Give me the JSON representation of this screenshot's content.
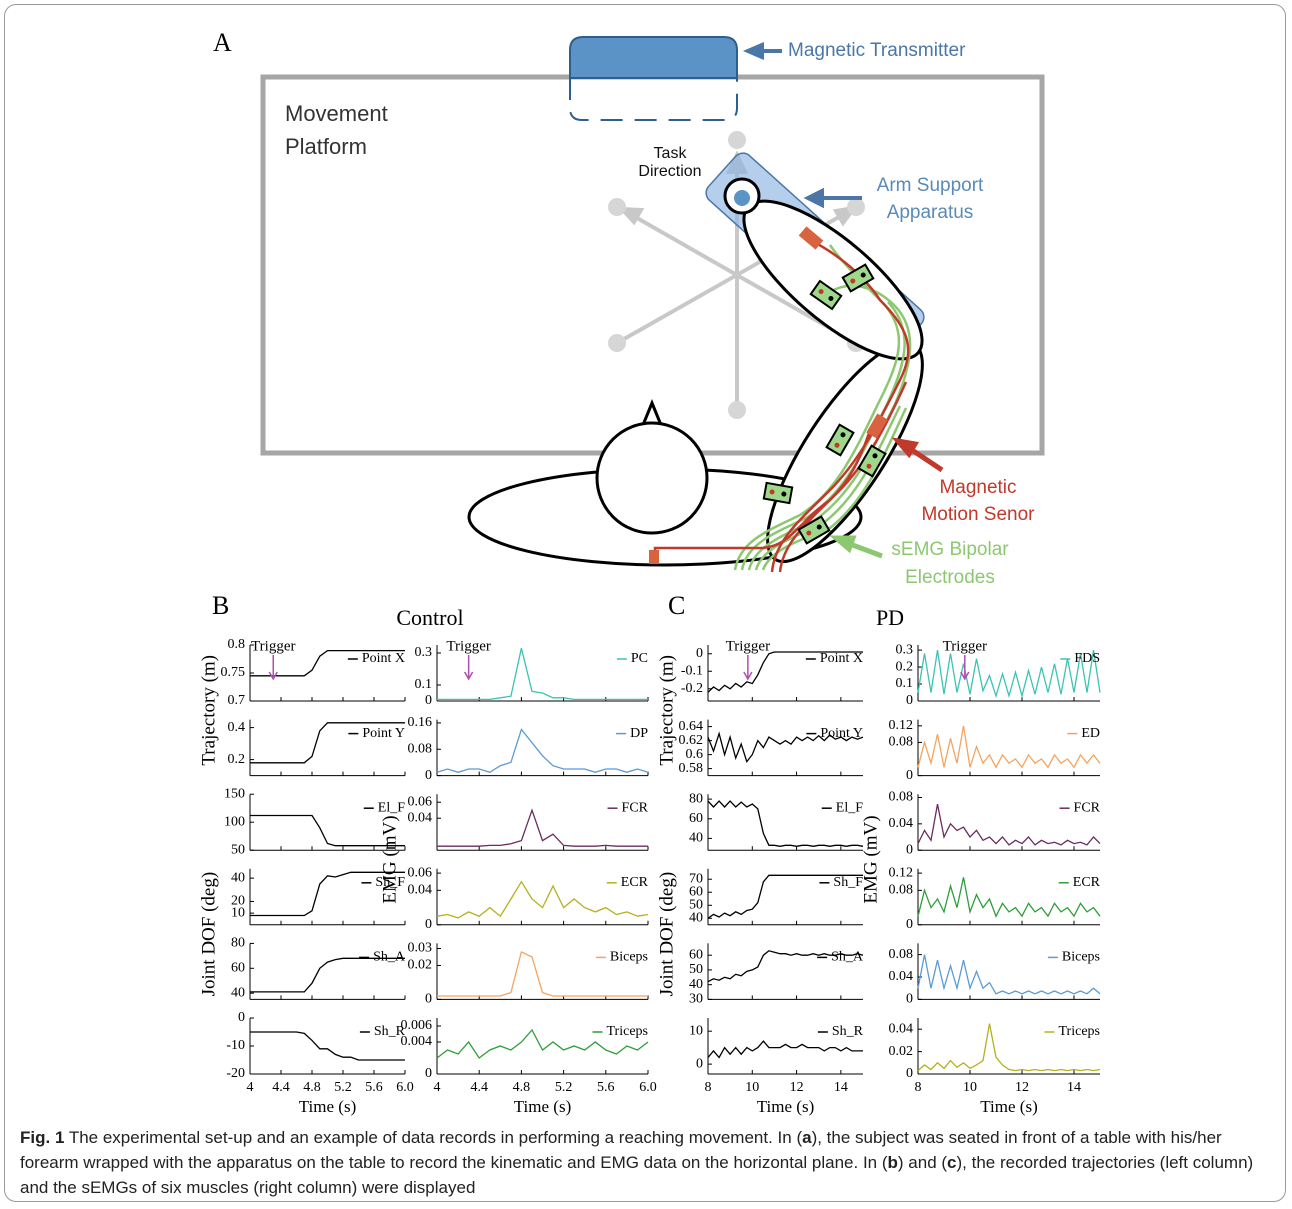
{
  "panel_a": {
    "label": "A",
    "platform": [
      "Movement",
      "Platform"
    ],
    "task_direction": [
      "Task",
      "Direction"
    ],
    "transmitter": "Magnetic Transmitter",
    "arm_support": [
      "Arm Support",
      "Apparatus"
    ],
    "motion_sensor": [
      "Magnetic",
      "Motion Senor"
    ],
    "semg": [
      "sEMG Bipolar",
      "Electrodes"
    ]
  },
  "panels": [
    {
      "label": "B",
      "title": "Control",
      "x_label": "Time (s)",
      "trigger": "Trigger",
      "trigger_x": 4.3,
      "left_axis_labels": [
        "Trajectory (m)",
        "Joint DOF (deg)"
      ],
      "right_axis_label": "EMG (mV)",
      "xlim": [
        4,
        6
      ],
      "xticks": [
        4,
        4.4,
        4.8,
        5.2,
        5.6,
        {
          "value": 6,
          "label": "6.0"
        }
      ],
      "x": [
        4,
        4.1,
        4.2,
        4.3,
        4.4,
        4.5,
        4.6,
        4.7,
        4.8,
        4.9,
        5,
        5.1,
        5.2,
        5.3,
        5.4,
        5.5,
        5.6,
        5.7,
        5.8,
        5.9,
        6
      ],
      "left": [
        {
          "name": "Point X",
          "color": "#000000",
          "ylim": [
            0.7,
            0.8
          ],
          "yticks": [
            0.7,
            0.75,
            0.8
          ],
          "values": [
            0.745,
            0.745,
            0.745,
            0.745,
            0.745,
            0.745,
            0.745,
            0.745,
            0.755,
            0.78,
            0.79,
            0.79,
            0.79,
            0.79,
            0.79,
            0.79,
            0.79,
            0.79,
            0.79,
            0.79,
            0.79
          ]
        },
        {
          "name": "Point Y",
          "color": "#000000",
          "ylim": [
            0.1,
            0.45
          ],
          "yticks": [
            0.2,
            0.4
          ],
          "values": [
            0.18,
            0.18,
            0.18,
            0.18,
            0.18,
            0.18,
            0.18,
            0.18,
            0.22,
            0.38,
            0.43,
            0.43,
            0.43,
            0.43,
            0.43,
            0.43,
            0.43,
            0.43,
            0.43,
            0.43,
            0.43
          ]
        },
        {
          "name": "El_F",
          "color": "#000000",
          "ylim": [
            50,
            150
          ],
          "yticks": [
            50,
            100,
            150
          ],
          "values": [
            112,
            112,
            112,
            112,
            112,
            112,
            112,
            112,
            112,
            90,
            62,
            58,
            58,
            58,
            58,
            58,
            58,
            58,
            58,
            58,
            58
          ]
        },
        {
          "name": "Sh_F",
          "color": "#000000",
          "ylim": [
            0,
            48
          ],
          "yticks": [
            10,
            20,
            40
          ],
          "values": [
            8,
            8,
            8,
            8,
            8,
            8,
            8,
            8,
            12,
            35,
            42,
            41,
            43,
            45,
            45,
            45,
            45,
            45,
            45,
            45,
            45
          ]
        },
        {
          "name": "Sh_A",
          "color": "#000000",
          "ylim": [
            35,
            80
          ],
          "yticks": [
            40,
            60,
            80
          ],
          "values": [
            41,
            41,
            41,
            41,
            41,
            41,
            41,
            41,
            48,
            60,
            65,
            67,
            68,
            68,
            68,
            68,
            68,
            68,
            68,
            68,
            68
          ]
        },
        {
          "name": "Sh_R",
          "color": "#000000",
          "ylim": [
            -20,
            0
          ],
          "yticks": [
            -20,
            -10,
            0
          ],
          "values": [
            -5,
            -5,
            -5,
            -5,
            -5,
            -5,
            -5,
            -5.5,
            -8,
            -11,
            -11,
            -13,
            -14,
            -14,
            -15,
            -15,
            -15,
            -15,
            -15,
            -15,
            -15
          ]
        }
      ],
      "right": [
        {
          "name": "PC",
          "color": "#3cc3b3",
          "ylim": [
            0,
            0.35
          ],
          "yticks": [
            0,
            0.1,
            0.3
          ],
          "values": [
            0.01,
            0.01,
            0.01,
            0.01,
            0.01,
            0.01,
            0.02,
            0.03,
            0.33,
            0.06,
            0.05,
            0.02,
            0.02,
            0.01,
            0.01,
            0.01,
            0.01,
            0.01,
            0.01,
            0.01,
            0.01
          ]
        },
        {
          "name": "DP",
          "color": "#5b9bd5",
          "ylim": [
            0,
            0.17
          ],
          "yticks": [
            0,
            0.08,
            0.16
          ],
          "values": [
            0.01,
            0.02,
            0.01,
            0.02,
            0.02,
            0.01,
            0.03,
            0.04,
            0.14,
            0.1,
            0.06,
            0.03,
            0.02,
            0.02,
            0.02,
            0.01,
            0.02,
            0.02,
            0.01,
            0.02,
            0.01
          ]
        },
        {
          "name": "FCR",
          "color": "#6b2c5e",
          "ylim": [
            0,
            0.07
          ],
          "yticks": [
            0.04,
            0.06
          ],
          "values": [
            0.005,
            0.005,
            0.005,
            0.005,
            0.005,
            0.006,
            0.006,
            0.008,
            0.012,
            0.05,
            0.012,
            0.02,
            0.006,
            0.005,
            0.005,
            0.005,
            0.006,
            0.005,
            0.005,
            0.005,
            0.005
          ]
        },
        {
          "name": "ECR",
          "color": "#b5b01c",
          "ylim": [
            0,
            0.065
          ],
          "yticks": [
            0,
            0.04,
            0.06
          ],
          "values": [
            0.01,
            0.012,
            0.008,
            0.015,
            0.01,
            0.02,
            0.01,
            0.03,
            0.05,
            0.03,
            0.02,
            0.045,
            0.02,
            0.03,
            0.02,
            0.015,
            0.02,
            0.012,
            0.015,
            0.01,
            0.012
          ]
        },
        {
          "name": "Biceps",
          "color": "#f4a460",
          "ylim": [
            0,
            0.033
          ],
          "yticks": [
            0,
            0.02,
            0.03
          ],
          "values": [
            0.002,
            0.002,
            0.002,
            0.002,
            0.002,
            0.002,
            0.002,
            0.004,
            0.028,
            0.025,
            0.004,
            0.002,
            0.002,
            0.002,
            0.002,
            0.002,
            0.002,
            0.002,
            0.002,
            0.002,
            0.002
          ]
        },
        {
          "name": "Triceps",
          "color": "#2e9e3a",
          "ylim": [
            0,
            0.007
          ],
          "yticks": [
            0,
            0.004,
            0.006
          ],
          "values": [
            0.002,
            0.003,
            0.0025,
            0.004,
            0.002,
            0.003,
            0.0035,
            0.003,
            0.004,
            0.0055,
            0.003,
            0.004,
            0.003,
            0.0035,
            0.003,
            0.004,
            0.003,
            0.0025,
            0.0035,
            0.003,
            0.004
          ]
        }
      ]
    },
    {
      "label": "C",
      "title": "PD",
      "x_label": "Time (s)",
      "trigger": "Trigger",
      "trigger_x": 9.8,
      "left_axis_labels": [
        "Trajectory (m)",
        "Joint DOF (deg)"
      ],
      "right_axis_label": "EMG (mV)",
      "xlim": [
        8,
        15
      ],
      "xticks": [
        8,
        10,
        12,
        14
      ],
      "x": [
        8,
        8.25,
        8.5,
        8.75,
        9,
        9.25,
        9.5,
        9.75,
        10,
        10.25,
        10.5,
        10.75,
        11,
        11.25,
        11.5,
        11.75,
        12,
        12.25,
        12.5,
        12.75,
        13,
        13.25,
        13.5,
        13.75,
        14,
        14.25,
        14.5,
        14.75,
        15
      ],
      "left": [
        {
          "name": "Point X",
          "color": "#000000",
          "ylim": [
            -0.27,
            0.05
          ],
          "yticks": [
            -0.2,
            -0.1,
            0
          ],
          "values": [
            -0.22,
            -0.19,
            -0.21,
            -0.18,
            -0.2,
            -0.17,
            -0.19,
            -0.16,
            -0.17,
            -0.12,
            -0.05,
            0,
            0.01,
            0.01,
            0.01,
            0.01,
            0.01,
            0.01,
            0.01,
            0.01,
            0.01,
            0.01,
            0.01,
            0.01,
            0.01,
            0.01,
            0.01,
            0.01,
            0.01
          ]
        },
        {
          "name": "Point Y",
          "color": "#000000",
          "ylim": [
            0.57,
            0.65
          ],
          "yticks": [
            0.58,
            0.6,
            0.62,
            0.64
          ],
          "values": [
            0.625,
            0.605,
            0.63,
            0.6,
            0.625,
            0.595,
            0.615,
            0.59,
            0.6,
            0.62,
            0.61,
            0.625,
            0.62,
            0.615,
            0.62,
            0.615,
            0.625,
            0.62,
            0.625,
            0.62,
            0.627,
            0.62,
            0.628,
            0.622,
            0.625,
            0.62,
            0.625,
            0.622,
            0.625
          ]
        },
        {
          "name": "El_F",
          "color": "#000000",
          "ylim": [
            28,
            85
          ],
          "yticks": [
            40,
            60,
            80
          ],
          "values": [
            78,
            72,
            78,
            72,
            78,
            72,
            77,
            72,
            75,
            70,
            45,
            33,
            33,
            32,
            33,
            33,
            32,
            33,
            33,
            32,
            33,
            33,
            32,
            33,
            33,
            32,
            33,
            33,
            32
          ]
        },
        {
          "name": "Sh_F",
          "color": "#000000",
          "ylim": [
            35,
            78
          ],
          "yticks": [
            40,
            50,
            60,
            70
          ],
          "values": [
            40,
            43,
            41,
            44,
            42,
            45,
            43,
            46,
            47,
            52,
            68,
            73,
            73,
            73,
            73,
            73,
            73,
            73,
            73,
            73,
            73,
            73,
            73,
            73,
            73,
            73,
            73,
            73,
            73
          ]
        },
        {
          "name": "Sh_A",
          "color": "#000000",
          "ylim": [
            30,
            68
          ],
          "yticks": [
            30,
            40,
            50,
            60
          ],
          "values": [
            42,
            44,
            43,
            45,
            44,
            47,
            46,
            49,
            50,
            52,
            60,
            63,
            62,
            61,
            61,
            60,
            61,
            60,
            60,
            61,
            60,
            61,
            60,
            60,
            61,
            60,
            60,
            61,
            60
          ]
        },
        {
          "name": "Sh_R",
          "color": "#000000",
          "ylim": [
            -3,
            14
          ],
          "yticks": [
            0,
            10
          ],
          "values": [
            2,
            4,
            2,
            5,
            3,
            5,
            3,
            5,
            4,
            5,
            7,
            5,
            5,
            5,
            6,
            5,
            5,
            6,
            5,
            5,
            5,
            4,
            5,
            5,
            4,
            5,
            4,
            4,
            4
          ]
        }
      ],
      "right": [
        {
          "name": "FDS",
          "color": "#3cc3b3",
          "ylim": [
            0,
            0.33
          ],
          "yticks": [
            0,
            0.1,
            0.2,
            0.3
          ],
          "values": [
            0.05,
            0.28,
            0.05,
            0.3,
            0.04,
            0.28,
            0.05,
            0.22,
            0.04,
            0.25,
            0.06,
            0.15,
            0.03,
            0.16,
            0.03,
            0.17,
            0.03,
            0.18,
            0.04,
            0.2,
            0.05,
            0.22,
            0.04,
            0.25,
            0.05,
            0.28,
            0.05,
            0.3,
            0.05
          ]
        },
        {
          "name": "ED",
          "color": "#f4a460",
          "ylim": [
            0,
            0.135
          ],
          "yticks": [
            0,
            0.08,
            0.12
          ],
          "values": [
            0.02,
            0.08,
            0.03,
            0.1,
            0.02,
            0.09,
            0.03,
            0.12,
            0.02,
            0.07,
            0.03,
            0.05,
            0.02,
            0.05,
            0.03,
            0.04,
            0.02,
            0.05,
            0.03,
            0.04,
            0.02,
            0.05,
            0.03,
            0.04,
            0.02,
            0.05,
            0.03,
            0.05,
            0.03
          ]
        },
        {
          "name": "FCR",
          "color": "#6b2c5e",
          "ylim": [
            0,
            0.085
          ],
          "yticks": [
            0,
            0.04,
            0.08
          ],
          "values": [
            0.01,
            0.03,
            0.015,
            0.07,
            0.02,
            0.04,
            0.03,
            0.035,
            0.02,
            0.03,
            0.015,
            0.02,
            0.01,
            0.02,
            0.008,
            0.015,
            0.01,
            0.02,
            0.008,
            0.015,
            0.01,
            0.012,
            0.008,
            0.015,
            0.01,
            0.012,
            0.008,
            0.02,
            0.01
          ]
        },
        {
          "name": "ECR",
          "color": "#2e9e3a",
          "ylim": [
            0,
            0.13
          ],
          "yticks": [
            0,
            0.08,
            0.12
          ],
          "values": [
            0.02,
            0.08,
            0.04,
            0.06,
            0.03,
            0.09,
            0.04,
            0.11,
            0.03,
            0.07,
            0.04,
            0.06,
            0.02,
            0.05,
            0.03,
            0.04,
            0.02,
            0.05,
            0.03,
            0.04,
            0.02,
            0.05,
            0.03,
            0.04,
            0.02,
            0.05,
            0.03,
            0.04,
            0.02
          ]
        },
        {
          "name": "Biceps",
          "color": "#5b9bd5",
          "ylim": [
            0,
            0.1
          ],
          "yticks": [
            0,
            0.04,
            0.08
          ],
          "values": [
            0.02,
            0.08,
            0.02,
            0.07,
            0.02,
            0.06,
            0.02,
            0.07,
            0.02,
            0.05,
            0.02,
            0.03,
            0.01,
            0.015,
            0.01,
            0.015,
            0.01,
            0.015,
            0.01,
            0.015,
            0.01,
            0.015,
            0.01,
            0.015,
            0.01,
            0.015,
            0.01,
            0.02,
            0.01
          ]
        },
        {
          "name": "Triceps",
          "color": "#b5b01c",
          "ylim": [
            0,
            0.05
          ],
          "yticks": [
            0,
            0.02,
            0.04
          ],
          "values": [
            0.003,
            0.008,
            0.004,
            0.01,
            0.005,
            0.012,
            0.006,
            0.01,
            0.005,
            0.008,
            0.012,
            0.045,
            0.015,
            0.008,
            0.004,
            0.003,
            0.004,
            0.003,
            0.004,
            0.003,
            0.004,
            0.003,
            0.004,
            0.003,
            0.004,
            0.003,
            0.004,
            0.003,
            0.004
          ]
        }
      ]
    }
  ],
  "caption": {
    "label": "Fig. 1",
    "parts": [
      "The experimental set-up and an example of data records in performing a reaching movement. In (",
      "a",
      "), the subject was seated in front of a table with his/her forearm wrapped with the apparatus on the table to record the kinematic and EMG data on the horizontal plane. In (",
      "b",
      ") and (",
      "c",
      "), the recorded trajectories (left column) and the sEMGs of six muscles (right column) were displayed"
    ]
  }
}
